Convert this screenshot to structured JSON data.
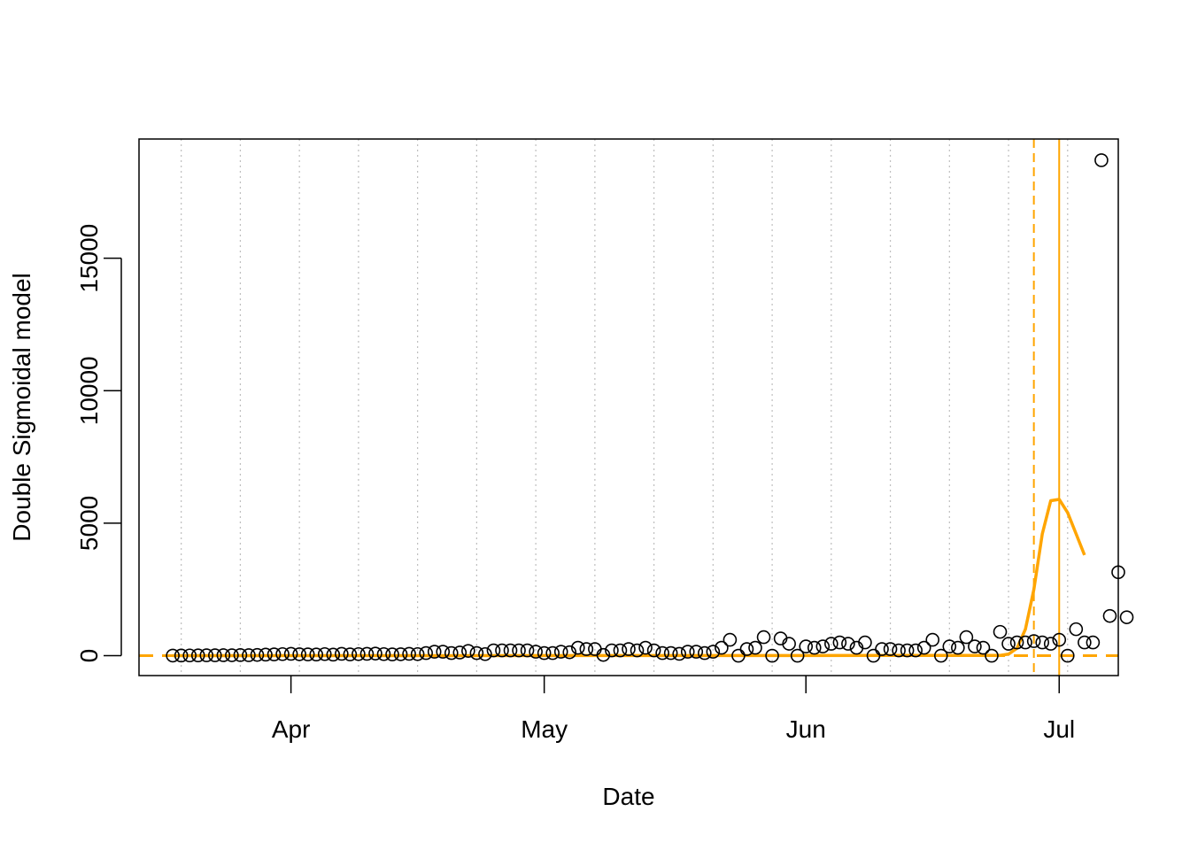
{
  "chart_data": {
    "type": "scatter",
    "title": "",
    "xlabel": "Date",
    "ylabel": "Double Sigmoidal model",
    "x_axis": {
      "type": "date",
      "range": [
        "2020-03-14",
        "2020-07-08"
      ],
      "ticks": [
        "2020-04-01",
        "2020-05-01",
        "2020-06-01",
        "2020-07-01"
      ],
      "tick_labels": [
        "Apr",
        "May",
        "Jun",
        "Jul"
      ]
    },
    "y_axis": {
      "range": [
        -750,
        19500
      ],
      "ticks": [
        0,
        5000,
        10000,
        15000
      ],
      "tick_labels": [
        "0",
        "5000",
        "10000",
        "15000"
      ]
    },
    "grid": {
      "x": "dotted vertical lines every 7 days",
      "y": "none"
    },
    "colors": {
      "model": "#FFA500",
      "points": "#000000",
      "grid": "#BEBEBE"
    },
    "reference_lines": [
      {
        "orientation": "horizontal",
        "y": 0,
        "style": "dashed",
        "color": "#FFA500"
      },
      {
        "orientation": "vertical",
        "x": "2020-06-28",
        "style": "dashed",
        "color": "#FFA500"
      },
      {
        "orientation": "vertical",
        "x": "2020-07-01",
        "style": "solid",
        "color": "#FFA500"
      }
    ],
    "grid_dates": [
      "2020-03-19",
      "2020-03-26",
      "2020-04-02",
      "2020-04-09",
      "2020-04-16",
      "2020-04-23",
      "2020-04-30",
      "2020-05-07",
      "2020-05-14",
      "2020-05-21",
      "2020-05-28",
      "2020-06-04",
      "2020-06-11",
      "2020-06-18",
      "2020-06-25",
      "2020-07-02"
    ],
    "series": [
      {
        "kind": "points",
        "start_date": "2020-03-18",
        "y": [
          5,
          8,
          10,
          12,
          15,
          15,
          20,
          18,
          25,
          20,
          30,
          40,
          50,
          60,
          70,
          55,
          50,
          45,
          60,
          40,
          70,
          50,
          60,
          70,
          80,
          60,
          50,
          55,
          70,
          60,
          100,
          150,
          150,
          100,
          120,
          180,
          100,
          60,
          200,
          200,
          200,
          200,
          200,
          150,
          100,
          100,
          150,
          130,
          300,
          250,
          250,
          30,
          200,
          200,
          250,
          200,
          300,
          200,
          100,
          100,
          70,
          150,
          150,
          100,
          150,
          300,
          600,
          0,
          250,
          300,
          700,
          0,
          650,
          450,
          0,
          350,
          300,
          350,
          450,
          500,
          450,
          300,
          500,
          0,
          250,
          250,
          200,
          200,
          200,
          300,
          600,
          0,
          350,
          300,
          700,
          350,
          300,
          0,
          900,
          450,
          500,
          500,
          550,
          500,
          450,
          600,
          0,
          1000,
          500,
          500,
          18700,
          1500,
          3150,
          1450
        ]
      },
      {
        "kind": "model_curve",
        "x": [
          "2020-03-18",
          "2020-06-24",
          "2020-06-25",
          "2020-06-26",
          "2020-06-27",
          "2020-06-28",
          "2020-06-29",
          "2020-06-30",
          "2020-07-01",
          "2020-07-02",
          "2020-07-03",
          "2020-07-04"
        ],
        "y": [
          0,
          10,
          60,
          280,
          1000,
          2500,
          4600,
          5850,
          5900,
          5400,
          4600,
          3800
        ]
      }
    ]
  }
}
